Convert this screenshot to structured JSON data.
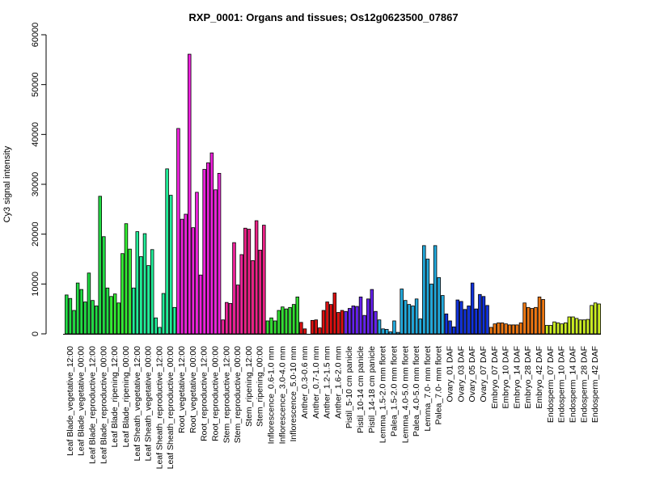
{
  "chart_data": {
    "type": "bar",
    "title": "RXP_0001: Organs and tissues; Os12g0623500_07867",
    "xlabel": "",
    "ylabel": "Cy3 signal intensity",
    "ylim": [
      0,
      60000
    ],
    "yticks": [
      0,
      10000,
      20000,
      30000,
      40000,
      50000,
      60000
    ],
    "grid": false,
    "legend": "none",
    "groups": [
      {
        "label": "Leaf Blade_vegetative_12:00",
        "color": "#22dd44",
        "values": [
          7800,
          7100,
          4700
        ]
      },
      {
        "label": "Leaf Blade_vegetative_00:00",
        "color": "#22dd44",
        "values": [
          10200,
          8900,
          6400
        ]
      },
      {
        "label": "Leaf Blade_reproductive_12:00",
        "color": "#22dd44",
        "values": [
          12200,
          6700,
          5600
        ]
      },
      {
        "label": "Leaf Blade_reproductive_00:00",
        "color": "#22dd44",
        "values": [
          27600,
          19500,
          9200
        ]
      },
      {
        "label": "Leaf Blade_ripening_12:00",
        "color": "#33ee33",
        "values": [
          7500,
          8000,
          6200
        ]
      },
      {
        "label": "Leaf Blade_ripening_00:00",
        "color": "#33ee33",
        "values": [
          16100,
          22100,
          17000
        ]
      },
      {
        "label": "Leaf Sheath_vegetative_12:00",
        "color": "#22ee99",
        "values": [
          9200,
          20500,
          15500
        ]
      },
      {
        "label": "Leaf Sheath_vegetative_00:00",
        "color": "#22ee99",
        "values": [
          20100,
          13700,
          16900
        ]
      },
      {
        "label": "Leaf Sheath_reproductive_12:00",
        "color": "#22ee99",
        "values": [
          3200,
          1300,
          8100
        ]
      },
      {
        "label": "Leaf Sheath_reproductive_00:00",
        "color": "#22ee99",
        "values": [
          33100,
          27800,
          5300
        ]
      },
      {
        "label": "Root_vegetative_12:00",
        "color": "#ee22dd",
        "values": [
          41200,
          23000,
          24000
        ]
      },
      {
        "label": "Root_vegetative_00:00",
        "color": "#ee22dd",
        "values": [
          56100,
          21300,
          28400
        ]
      },
      {
        "label": "Root_reproductive_12:00",
        "color": "#ee22dd",
        "values": [
          11800,
          33000,
          34300
        ]
      },
      {
        "label": "Root_reproductive_00:00",
        "color": "#ee22dd",
        "values": [
          36300,
          28900,
          32200
        ]
      },
      {
        "label": "Stem_reproductive_12:00",
        "color": "#ee2299",
        "values": [
          2800,
          6300,
          6100
        ]
      },
      {
        "label": "Stem_reproductive_00:00",
        "color": "#ee2299",
        "values": [
          18300,
          9800,
          15900
        ]
      },
      {
        "label": "Stem_ripening_12:00",
        "color": "#ee2288",
        "values": [
          21200,
          21000,
          14700
        ]
      },
      {
        "label": "Stem_ripening_00:00",
        "color": "#ee2288",
        "values": [
          22700,
          16800,
          21800
        ]
      },
      {
        "label": "Inflorescence_0.6-1.0 mm",
        "color": "#33dd33",
        "values": [
          2600,
          3200,
          2600
        ]
      },
      {
        "label": "Inflorescence_3.0-4.0 mm",
        "color": "#33dd33",
        "values": [
          4700,
          5400,
          5000
        ]
      },
      {
        "label": "Inflorescence_5.0-10 mm",
        "color": "#33dd33",
        "values": [
          5300,
          5900,
          7400
        ]
      },
      {
        "label": "Anther_0.3-0.6 mm",
        "color": "#dd1111",
        "values": [
          2300,
          1000
        ]
      },
      {
        "label": "Anther_0.7-1.0 mm",
        "color": "#dd1111",
        "values": [
          2700,
          2800,
          1200
        ]
      },
      {
        "label": "Anther_1.2-1.5 mm",
        "color": "#dd1111",
        "values": [
          4700,
          6400,
          5900
        ]
      },
      {
        "label": "Anther_1.6-2.0 mm",
        "color": "#dd1111",
        "values": [
          8200,
          4300,
          4700
        ]
      },
      {
        "label": "Pistil_5-10 cm panicle",
        "color": "#6622ee",
        "values": [
          4500,
          5100,
          5600
        ]
      },
      {
        "label": "Pistil_10-14 cm panicle",
        "color": "#6622ee",
        "values": [
          5500,
          7400,
          3700
        ]
      },
      {
        "label": "Pistil_14-18 cm panicle",
        "color": "#6622ee",
        "values": [
          7000,
          8900,
          4500
        ]
      },
      {
        "label": "Lemma_1.5-2.0 mm floret",
        "color": "#22aadd",
        "values": [
          2800,
          1000,
          900
        ]
      },
      {
        "label": "Palea_1.5-2.0 mm floret",
        "color": "#22aadd",
        "values": [
          400,
          2600,
          300
        ]
      },
      {
        "label": "Lemma_4.0-5.0 mm floret",
        "color": "#22aadd",
        "values": [
          9000,
          6700,
          5900
        ]
      },
      {
        "label": "Palea_4.0-5.0 mm floret",
        "color": "#22aadd",
        "values": [
          5600,
          7000,
          3000
        ]
      },
      {
        "label": "Lemma_7.0- mm floret",
        "color": "#22aadd",
        "values": [
          17700,
          15000,
          10000
        ]
      },
      {
        "label": "Palea_7.0- mm floret",
        "color": "#22aadd",
        "values": [
          17700,
          11300,
          7700
        ]
      },
      {
        "label": "Ovary_01 DAF",
        "color": "#1133dd",
        "values": [
          4000,
          2600,
          1400
        ]
      },
      {
        "label": "Ovary_03 DAF",
        "color": "#1133dd",
        "values": [
          6800,
          6500,
          4900
        ]
      },
      {
        "label": "Ovary_05 DAF",
        "color": "#1133dd",
        "values": [
          5600,
          10200,
          5000
        ]
      },
      {
        "label": "Ovary_07 DAF",
        "color": "#1133dd",
        "values": [
          7900,
          7500,
          5700
        ]
      },
      {
        "label": "Embryo_07 DAF",
        "color": "#ee7711",
        "values": [
          1300,
          2000,
          2200
        ]
      },
      {
        "label": "Embryo_10 DAF",
        "color": "#ee7711",
        "values": [
          2200,
          2000,
          1800
        ]
      },
      {
        "label": "Embryo_14 DAF",
        "color": "#ee7711",
        "values": [
          1800,
          1800,
          2200
        ]
      },
      {
        "label": "Embryo_28 DAF",
        "color": "#ee7711",
        "values": [
          6200,
          5300,
          5100
        ]
      },
      {
        "label": "Embryo_42 DAF",
        "color": "#ee7711",
        "values": [
          5300,
          7400,
          6900
        ]
      },
      {
        "label": "Endosperm_07 DAF",
        "color": "#ccee22",
        "values": [
          1700,
          1700,
          2400
        ]
      },
      {
        "label": "Endosperm_10 DAF",
        "color": "#ccee22",
        "values": [
          2200,
          2000,
          2200
        ]
      },
      {
        "label": "Endosperm_14 DAF",
        "color": "#ccee22",
        "values": [
          3400,
          3400,
          3100
        ]
      },
      {
        "label": "Endosperm_28 DAF",
        "color": "#ccee22",
        "values": [
          2800,
          2800,
          2900
        ]
      },
      {
        "label": "Endosperm_42 DAF",
        "color": "#ccee22",
        "values": [
          5700,
          6200,
          6000
        ]
      }
    ]
  }
}
